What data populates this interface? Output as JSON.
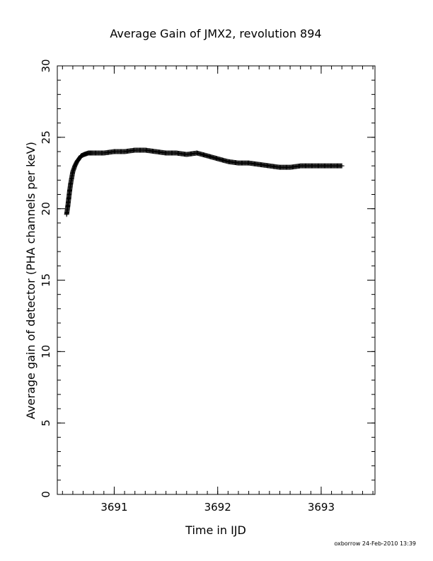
{
  "chart_data": {
    "type": "scatter",
    "title": "Average Gain of JMX2, revolution 894",
    "xlabel": "Time in IJD",
    "ylabel": "Average gain of detector (PHA channels per keV)",
    "xlim": [
      3690.45,
      3693.52
    ],
    "ylim": [
      0,
      30
    ],
    "x_major_ticks": [
      3691,
      3692,
      3693
    ],
    "x_tick_labels": [
      "3691",
      "3692",
      "3693"
    ],
    "x_minor_step": 0.1,
    "y_major_ticks": [
      0,
      5,
      10,
      15,
      20,
      25,
      30
    ],
    "y_tick_labels": [
      "0",
      "5",
      "10",
      "15",
      "20",
      "25",
      "30"
    ],
    "y_minor_step": 1,
    "grid": false,
    "marker": "plus",
    "color": "#000000",
    "series": [
      {
        "x": [
          3690.54,
          3690.55,
          3690.56,
          3690.57,
          3690.58,
          3690.59,
          3690.6,
          3690.62,
          3690.64,
          3690.66,
          3690.68,
          3690.71,
          3690.75,
          3690.8,
          3690.9,
          3691.0,
          3691.1,
          3691.2,
          3691.3,
          3691.4,
          3691.5,
          3691.6,
          3691.7,
          3691.8,
          3691.9,
          3692.0,
          3692.1,
          3692.2,
          3692.3,
          3692.4,
          3692.5,
          3692.6,
          3692.7,
          3692.8,
          3692.9,
          3693.0,
          3693.1,
          3693.2
        ],
        "y": [
          19.6,
          20.1,
          20.7,
          21.3,
          21.8,
          22.2,
          22.6,
          23.0,
          23.3,
          23.5,
          23.7,
          23.8,
          23.9,
          23.9,
          23.9,
          24.0,
          24.0,
          24.1,
          24.1,
          24.0,
          23.9,
          23.9,
          23.8,
          23.9,
          23.7,
          23.5,
          23.3,
          23.2,
          23.2,
          23.1,
          23.0,
          22.9,
          22.9,
          23.0,
          23.0,
          23.0,
          23.0,
          23.0
        ]
      }
    ]
  },
  "footer": {
    "stamp": "oxborrow 24-Feb-2010 13:39"
  }
}
